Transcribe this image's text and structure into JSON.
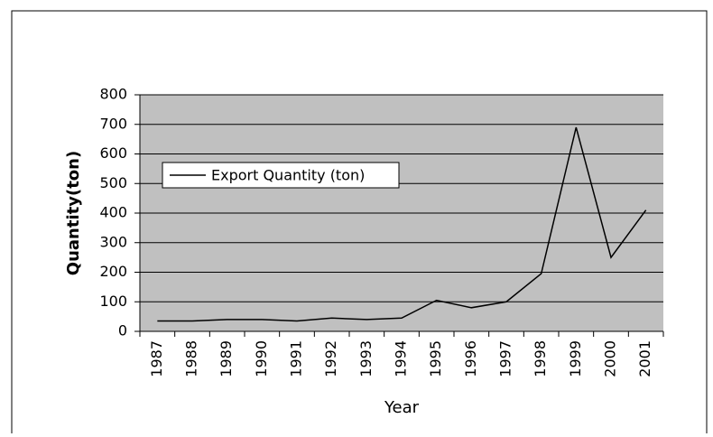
{
  "chart_data": {
    "type": "line",
    "x_label": "Year",
    "y_label": "Quantity(ton)",
    "categories": [
      "1987",
      "1988",
      "1989",
      "1990",
      "1991",
      "1992",
      "1993",
      "1994",
      "1995",
      "1996",
      "1997",
      "1998",
      "1999",
      "2000",
      "2001"
    ],
    "series": [
      {
        "name": "Export Quantity (ton)",
        "color": "#000000",
        "values": [
          35,
          35,
          40,
          40,
          35,
          45,
          40,
          45,
          105,
          80,
          100,
          195,
          690,
          250,
          410
        ]
      }
    ],
    "ylim": [
      0,
      800
    ],
    "yticks": [
      0,
      100,
      200,
      300,
      400,
      500,
      600,
      700,
      800
    ],
    "grid": true,
    "legend": "left"
  }
}
